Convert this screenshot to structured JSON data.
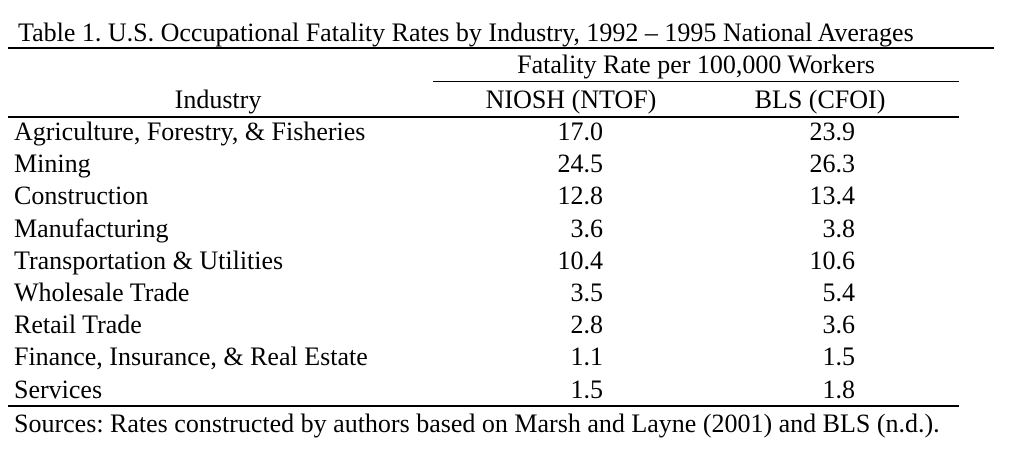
{
  "table": {
    "caption": "Table 1. U.S. Occupational Fatality Rates by Industry, 1992 – 1995 National  Averages",
    "spanner": "Fatality Rate per 100,000 Workers",
    "columns": [
      "Industry",
      "NIOSH (NTOF)",
      "BLS (CFOI)"
    ],
    "rows": [
      {
        "industry": "Agriculture, Forestry, & Fisheries",
        "niosh": "17.0",
        "bls": "23.9"
      },
      {
        "industry": "Mining",
        "niosh": "24.5",
        "bls": "26.3"
      },
      {
        "industry": "Construction",
        "niosh": "12.8",
        "bls": "13.4"
      },
      {
        "industry": "Manufacturing",
        "niosh": "3.6",
        "bls": "3.8"
      },
      {
        "industry": "Transportation & Utilities",
        "niosh": "10.4",
        "bls": "10.6"
      },
      {
        "industry": "Wholesale Trade",
        "niosh": "3.5",
        "bls": "5.4"
      },
      {
        "industry": "Retail Trade",
        "niosh": "2.8",
        "bls": "3.6"
      },
      {
        "industry": "Finance, Insurance, & Real Estate",
        "niosh": "1.1",
        "bls": "1.5"
      },
      {
        "industry": "Services",
        "niosh": "1.5",
        "bls": "1.8"
      }
    ],
    "source": "Sources: Rates constructed by authors based on Marsh and Layne (2001) and BLS (n.d.)."
  }
}
